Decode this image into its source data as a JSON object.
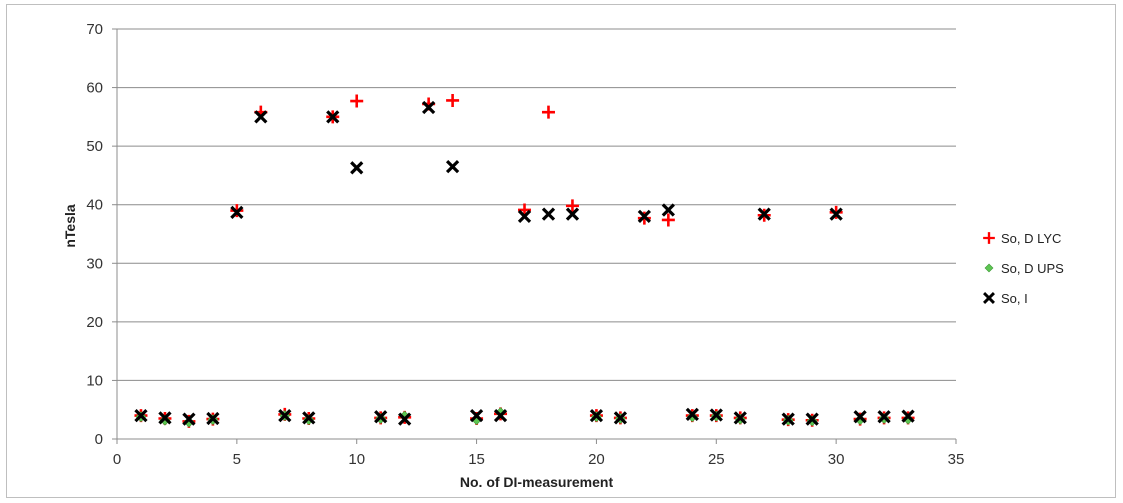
{
  "chart_data": {
    "type": "scatter",
    "title": "",
    "xlabel": "No. of DI-measurement",
    "ylabel": "nTesla",
    "xlim": [
      0,
      35
    ],
    "ylim": [
      0,
      70
    ],
    "x_ticks": [
      "0",
      "5",
      "10",
      "15",
      "20",
      "25",
      "30",
      "35"
    ],
    "y_ticks": [
      "0",
      "10",
      "20",
      "30",
      "40",
      "50",
      "60",
      "70"
    ],
    "grid": "horizontal",
    "legend_position": "right",
    "series": [
      {
        "name": "So, D LYC",
        "marker": "plus",
        "color": "#ff0000",
        "points": [
          [
            1,
            4.0
          ],
          [
            2,
            3.5
          ],
          [
            3,
            3.0
          ],
          [
            4,
            3.4
          ],
          [
            5,
            39.0
          ],
          [
            6,
            55.8
          ],
          [
            7,
            4.2
          ],
          [
            8,
            3.5
          ],
          [
            9,
            55.0
          ],
          [
            10,
            57.7
          ],
          [
            11,
            3.6
          ],
          [
            12,
            3.7
          ],
          [
            13,
            57.2
          ],
          [
            14,
            57.8
          ],
          [
            15,
            3.5
          ],
          [
            16,
            4.3
          ],
          [
            17,
            39.1
          ],
          [
            18,
            55.8
          ],
          [
            19,
            39.8
          ],
          [
            20,
            4.0
          ],
          [
            21,
            3.6
          ],
          [
            22,
            37.7
          ],
          [
            23,
            37.4
          ],
          [
            24,
            4.0
          ],
          [
            25,
            4.0
          ],
          [
            26,
            3.6
          ],
          [
            27,
            38.2
          ],
          [
            28,
            3.3
          ],
          [
            29,
            3.2
          ],
          [
            30,
            38.7
          ],
          [
            31,
            3.4
          ],
          [
            32,
            3.6
          ],
          [
            33,
            3.6
          ]
        ]
      },
      {
        "name": "So, D UPS",
        "marker": "diamond",
        "color": "#5dc552",
        "points": [
          [
            1,
            3.8
          ],
          [
            2,
            3.2
          ],
          [
            3,
            2.9
          ],
          [
            4,
            3.3
          ],
          [
            7,
            4.0
          ],
          [
            8,
            3.3
          ],
          [
            11,
            3.5
          ],
          [
            12,
            3.9
          ],
          [
            15,
            3.3
          ],
          [
            16,
            4.5
          ],
          [
            20,
            3.8
          ],
          [
            21,
            3.5
          ],
          [
            24,
            3.8
          ],
          [
            25,
            3.9
          ],
          [
            26,
            3.4
          ],
          [
            28,
            3.2
          ],
          [
            29,
            3.1
          ],
          [
            31,
            3.3
          ],
          [
            32,
            3.5
          ],
          [
            33,
            3.4
          ]
        ]
      },
      {
        "name": "So, I",
        "marker": "x",
        "color": "#000000",
        "points": [
          [
            1,
            4.0
          ],
          [
            2,
            3.6
          ],
          [
            3,
            3.4
          ],
          [
            4,
            3.5
          ],
          [
            5,
            38.7
          ],
          [
            6,
            55.0
          ],
          [
            7,
            4.0
          ],
          [
            8,
            3.6
          ],
          [
            9,
            55.0
          ],
          [
            10,
            46.3
          ],
          [
            11,
            3.8
          ],
          [
            12,
            3.4
          ],
          [
            13,
            56.6
          ],
          [
            14,
            46.5
          ],
          [
            15,
            4.0
          ],
          [
            16,
            4.0
          ],
          [
            17,
            38.0
          ],
          [
            18,
            38.4
          ],
          [
            19,
            38.4
          ],
          [
            20,
            4.0
          ],
          [
            21,
            3.6
          ],
          [
            22,
            38.0
          ],
          [
            23,
            39.1
          ],
          [
            24,
            4.2
          ],
          [
            25,
            4.1
          ],
          [
            26,
            3.6
          ],
          [
            27,
            38.4
          ],
          [
            28,
            3.4
          ],
          [
            29,
            3.4
          ],
          [
            30,
            38.4
          ],
          [
            31,
            3.8
          ],
          [
            32,
            3.8
          ],
          [
            33,
            3.9
          ]
        ]
      }
    ]
  }
}
